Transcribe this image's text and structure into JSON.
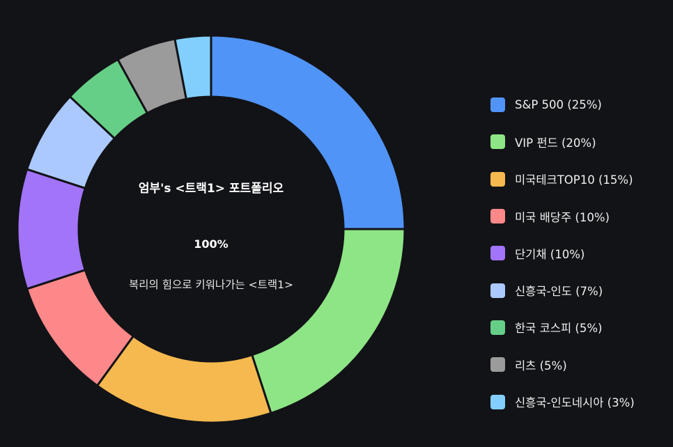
{
  "chart_data": {
    "type": "pie",
    "title": "엄부's <트랙1> 포트폴리오",
    "total_label": "100%",
    "subtitle": "복리의 힘으로 키워나가는 <트랙1>",
    "legend_position": "right",
    "slices": [
      {
        "label": "S&P 500 (25%)",
        "value": 25,
        "color": "#5194f7"
      },
      {
        "label": "VIP 펀드 (20%)",
        "value": 20,
        "color": "#8ee585"
      },
      {
        "label": "미국테크TOP10 (15%)",
        "value": 15,
        "color": "#f5b94f"
      },
      {
        "label": "미국 배당주 (10%)",
        "value": 10,
        "color": "#fd8889"
      },
      {
        "label": "단기채 (10%)",
        "value": 10,
        "color": "#a274f8"
      },
      {
        "label": "신흥국-인도 (7%)",
        "value": 7,
        "color": "#acc9fd"
      },
      {
        "label": "한국 코스피 (5%)",
        "value": 5,
        "color": "#66cf87"
      },
      {
        "label": "리츠 (5%)",
        "value": 5,
        "color": "#9b9b9b"
      },
      {
        "label": "신흥국-인도네시아 (3%)",
        "value": 3,
        "color": "#82cffd"
      }
    ]
  }
}
